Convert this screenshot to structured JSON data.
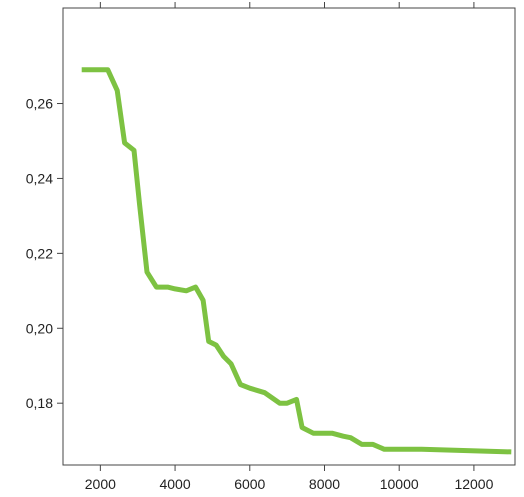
{
  "chart_data": {
    "type": "line",
    "title": "",
    "xlabel": "",
    "ylabel": "",
    "xlim": [
      1000,
      13100
    ],
    "ylim": [
      0.1635,
      0.2855
    ],
    "x_ticks": [
      2000,
      4000,
      6000,
      8000,
      10000,
      12000
    ],
    "x_tick_labels": [
      "2000",
      "4000",
      "6000",
      "8000",
      "10000",
      "12000"
    ],
    "y_ticks": [
      0.18,
      0.2,
      0.22,
      0.24,
      0.26
    ],
    "y_tick_labels": [
      "0,18",
      "0,20",
      "0,22",
      "0,24",
      "0,26"
    ],
    "grid": false,
    "line_color": "#7dc242",
    "series": [
      {
        "x": [
          1500,
          2200,
          2450,
          2650,
          2900,
          3050,
          3250,
          3500,
          3800,
          4000,
          4300,
          4550,
          4750,
          4900,
          5100,
          5300,
          5500,
          5750,
          6000,
          6400,
          6800,
          7000,
          7250,
          7400,
          7700,
          8200,
          8500,
          8700,
          9000,
          9300,
          9600,
          10600,
          13000
        ],
        "y": [
          0.269,
          0.269,
          0.2635,
          0.2495,
          0.2475,
          0.233,
          0.215,
          0.211,
          0.211,
          0.2105,
          0.21,
          0.211,
          0.2075,
          0.1965,
          0.1955,
          0.1925,
          0.1905,
          0.185,
          0.184,
          0.1828,
          0.18,
          0.18,
          0.181,
          0.1735,
          0.172,
          0.172,
          0.1712,
          0.1708,
          0.169,
          0.169,
          0.1677,
          0.1677,
          0.167
        ]
      }
    ]
  }
}
